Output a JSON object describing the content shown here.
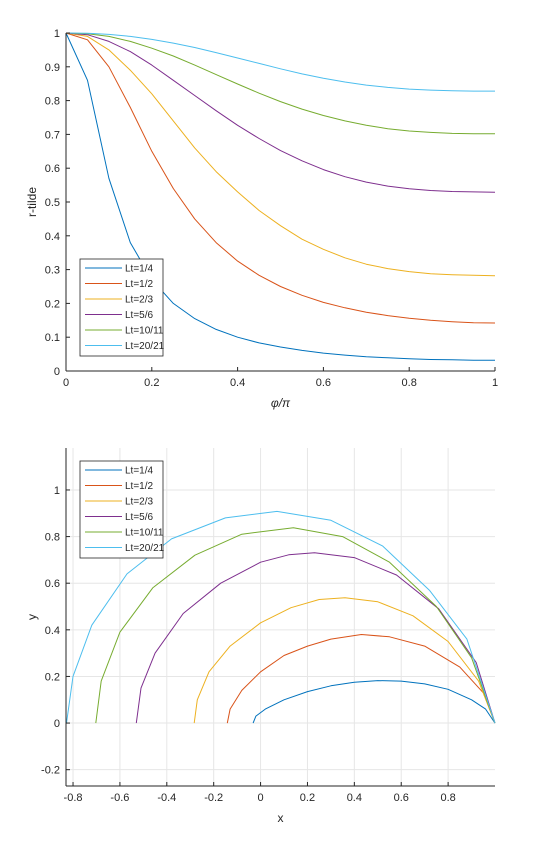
{
  "chart_data": [
    {
      "type": "line",
      "title": "",
      "xlabel": "φ/π",
      "ylabel": "r-tilde",
      "xlim": [
        0,
        1
      ],
      "ylim": [
        0,
        1
      ],
      "xticks": [
        "0",
        "0.2",
        "0.4",
        "0.6",
        "0.8",
        "1"
      ],
      "yticks": [
        "0",
        "0.1",
        "0.2",
        "0.3",
        "0.4",
        "0.5",
        "0.6",
        "0.7",
        "0.8",
        "0.9",
        "1"
      ],
      "grid": false,
      "legend_position": "bottom-left",
      "x": [
        0,
        0.05,
        0.1,
        0.15,
        0.2,
        0.25,
        0.3,
        0.35,
        0.4,
        0.45,
        0.5,
        0.55,
        0.6,
        0.65,
        0.7,
        0.75,
        0.8,
        0.85,
        0.9,
        0.95,
        1
      ],
      "series": [
        {
          "name": "Lt=1/4",
          "color": "#0072BD",
          "values": [
            1,
            0.86,
            0.57,
            0.38,
            0.27,
            0.2,
            0.155,
            0.123,
            0.1,
            0.083,
            0.071,
            0.061,
            0.053,
            0.047,
            0.042,
            0.039,
            0.036,
            0.034,
            0.033,
            0.032,
            0.032
          ]
        },
        {
          "name": "Lt=1/2",
          "color": "#D95319",
          "values": [
            1,
            0.98,
            0.9,
            0.78,
            0.65,
            0.54,
            0.45,
            0.38,
            0.325,
            0.283,
            0.25,
            0.224,
            0.203,
            0.187,
            0.174,
            0.164,
            0.156,
            0.15,
            0.146,
            0.143,
            0.142
          ]
        },
        {
          "name": "Lt=2/3",
          "color": "#EDB120",
          "values": [
            1,
            0.99,
            0.95,
            0.89,
            0.82,
            0.74,
            0.66,
            0.59,
            0.53,
            0.475,
            0.43,
            0.39,
            0.36,
            0.335,
            0.316,
            0.303,
            0.294,
            0.288,
            0.285,
            0.283,
            0.282
          ]
        },
        {
          "name": "Lt=5/6",
          "color": "#7E2F8E",
          "values": [
            1,
            0.995,
            0.975,
            0.945,
            0.905,
            0.86,
            0.815,
            0.77,
            0.727,
            0.688,
            0.652,
            0.622,
            0.596,
            0.575,
            0.559,
            0.547,
            0.539,
            0.534,
            0.531,
            0.53,
            0.529
          ]
        },
        {
          "name": "Lt=10/11",
          "color": "#77AC30",
          "values": [
            1,
            0.998,
            0.99,
            0.975,
            0.955,
            0.932,
            0.905,
            0.877,
            0.849,
            0.822,
            0.797,
            0.775,
            0.756,
            0.74,
            0.727,
            0.717,
            0.71,
            0.706,
            0.703,
            0.702,
            0.702
          ]
        },
        {
          "name": "Lt=20/21",
          "color": "#4DBEEE",
          "values": [
            1,
            0.999,
            0.996,
            0.99,
            0.981,
            0.97,
            0.957,
            0.942,
            0.926,
            0.91,
            0.894,
            0.879,
            0.866,
            0.855,
            0.846,
            0.839,
            0.834,
            0.831,
            0.829,
            0.828,
            0.828
          ]
        }
      ]
    },
    {
      "type": "line",
      "title": "",
      "xlabel": "x",
      "ylabel": "y",
      "xlim": [
        -0.83,
        1
      ],
      "ylim": [
        -0.27,
        1.18
      ],
      "xticks": [
        "-0.8",
        "-0.6",
        "-0.4",
        "-0.2",
        "0",
        "0.2",
        "0.4",
        "0.6",
        "0.8"
      ],
      "yticks": [
        "-0.2",
        "0",
        "0.2",
        "0.4",
        "0.6",
        "0.8",
        "1"
      ],
      "grid": true,
      "legend_position": "top-left",
      "series": [
        {
          "name": "Lt=1/4",
          "color": "#0072BD",
          "x": [
            -0.032,
            -0.02,
            0.02,
            0.1,
            0.2,
            0.3,
            0.4,
            0.5,
            0.6,
            0.7,
            0.8,
            0.9,
            0.96,
            1.0
          ],
          "y": [
            0.0,
            0.03,
            0.06,
            0.1,
            0.135,
            0.16,
            0.175,
            0.182,
            0.18,
            0.168,
            0.145,
            0.1,
            0.06,
            0.0
          ]
        },
        {
          "name": "Lt=1/2",
          "color": "#D95319",
          "x": [
            -0.142,
            -0.13,
            -0.08,
            0.0,
            0.1,
            0.2,
            0.3,
            0.43,
            0.55,
            0.7,
            0.85,
            0.95,
            1.0
          ],
          "y": [
            0.0,
            0.06,
            0.14,
            0.22,
            0.29,
            0.33,
            0.36,
            0.38,
            0.37,
            0.33,
            0.24,
            0.13,
            0.0
          ]
        },
        {
          "name": "Lt=2/3",
          "color": "#EDB120",
          "x": [
            -0.283,
            -0.27,
            -0.22,
            -0.13,
            0.0,
            0.13,
            0.25,
            0.36,
            0.5,
            0.65,
            0.8,
            0.93,
            1.0
          ],
          "y": [
            0.0,
            0.1,
            0.22,
            0.33,
            0.43,
            0.495,
            0.53,
            0.538,
            0.52,
            0.46,
            0.35,
            0.18,
            0.0
          ]
        },
        {
          "name": "Lt=5/6",
          "color": "#7E2F8E",
          "x": [
            -0.53,
            -0.51,
            -0.45,
            -0.33,
            -0.17,
            0.0,
            0.12,
            0.23,
            0.4,
            0.58,
            0.76,
            0.92,
            1.0
          ],
          "y": [
            0.0,
            0.15,
            0.3,
            0.47,
            0.6,
            0.69,
            0.722,
            0.731,
            0.71,
            0.635,
            0.49,
            0.26,
            0.0
          ]
        },
        {
          "name": "Lt=10/11",
          "color": "#77AC30",
          "x": [
            -0.703,
            -0.68,
            -0.6,
            -0.46,
            -0.28,
            -0.08,
            0.14,
            0.35,
            0.55,
            0.75,
            0.9,
            1.0
          ],
          "y": [
            0.0,
            0.18,
            0.39,
            0.58,
            0.72,
            0.81,
            0.838,
            0.8,
            0.69,
            0.5,
            0.28,
            0.0
          ]
        },
        {
          "name": "Lt=20/21",
          "color": "#4DBEEE",
          "x": [
            -0.828,
            -0.8,
            -0.72,
            -0.57,
            -0.38,
            -0.15,
            0.07,
            0.3,
            0.52,
            0.72,
            0.88,
            1.0
          ],
          "y": [
            0.0,
            0.2,
            0.42,
            0.64,
            0.79,
            0.88,
            0.908,
            0.87,
            0.76,
            0.57,
            0.36,
            0.0
          ]
        }
      ]
    }
  ]
}
